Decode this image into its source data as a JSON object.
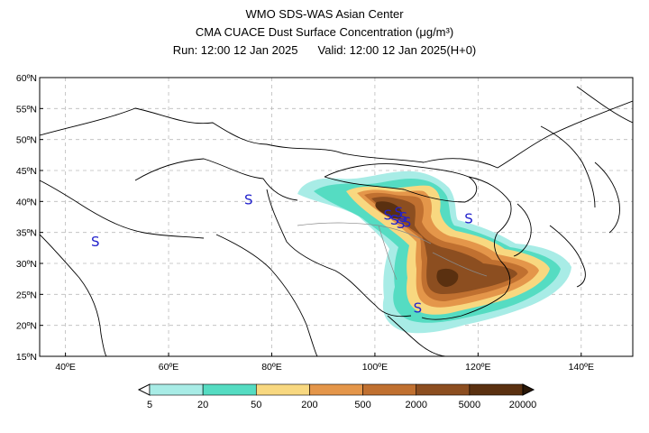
{
  "header": {
    "line1": "WMO SDS-WAS Asian Center",
    "line2": "CMA CUACE Dust Surface Concentration (μg/m³)",
    "run": "Run: 12:00 12 Jan 2025",
    "valid": "Valid: 12:00 12 Jan 2025(H+0)"
  },
  "map": {
    "lon_range": [
      35,
      150
    ],
    "lat_range": [
      15,
      60
    ],
    "lon_ticks": [
      "40ºE",
      "60ºE",
      "80ºE",
      "100ºE",
      "120ºE",
      "140ºE"
    ],
    "lat_ticks": [
      "15ºN",
      "20ºN",
      "25ºN",
      "30ºN",
      "35ºN",
      "40ºN",
      "45ºN",
      "50ºN",
      "55ºN",
      "60ºN"
    ],
    "grid": "dashed",
    "station_symbol": "S",
    "stations": [
      {
        "lon": 75.5,
        "lat": 40.3
      },
      {
        "lon": 45.8,
        "lat": 33.5
      },
      {
        "lon": 102.5,
        "lat": 37.8
      },
      {
        "lon": 103.8,
        "lat": 37.0
      },
      {
        "lon": 104.6,
        "lat": 38.2
      },
      {
        "lon": 105.5,
        "lat": 37.4
      },
      {
        "lon": 106.2,
        "lat": 36.6
      },
      {
        "lon": 105.0,
        "lat": 36.4
      },
      {
        "lon": 118.2,
        "lat": 37.2
      },
      {
        "lon": 108.3,
        "lat": 22.8
      }
    ]
  },
  "colorbar": {
    "labels": [
      "5",
      "20",
      "50",
      "200",
      "500",
      "2000",
      "5000",
      "20000"
    ],
    "colors": [
      "#a8ece6",
      "#55dcc2",
      "#f8d880",
      "#e4964a",
      "#c07030",
      "#8c4e20",
      "#5a3010"
    ],
    "under_color": "#ffffff",
    "over_color": "#2a1808"
  }
}
